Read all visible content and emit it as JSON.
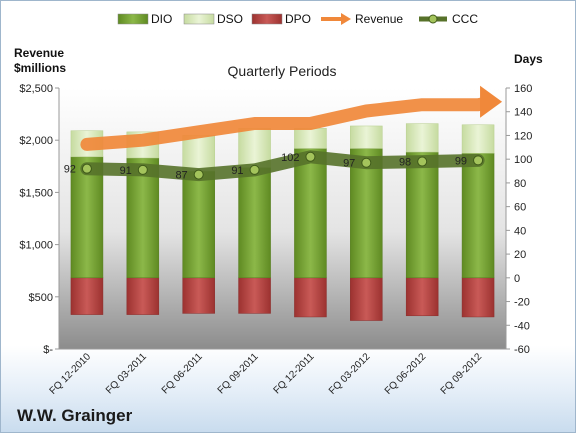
{
  "company_name": "W.W. Grainger",
  "chart_data": {
    "type": "bar",
    "title": "Quarterly Periods",
    "left_axis_label_line1": "Revenue",
    "left_axis_label_line2": "$millions",
    "right_axis_label": "Days",
    "categories": [
      "FQ 12-2010",
      "FQ 03-2011",
      "FQ 06-2011",
      "FQ 09-2011",
      "FQ 12-2011",
      "FQ 03-2012",
      "FQ 06-2012",
      "FQ 09-2012"
    ],
    "left_axis": {
      "min": 0,
      "max": 2500,
      "ticks": [
        0,
        500,
        1000,
        1500,
        2000,
        2500
      ],
      "tick_labels": [
        "$-",
        "$500",
        "$1,000",
        "$1,500",
        "$2,000",
        "$2,500"
      ]
    },
    "right_axis": {
      "min": -60,
      "max": 160,
      "ticks": [
        -60,
        -40,
        -20,
        0,
        20,
        40,
        60,
        80,
        100,
        120,
        140,
        160
      ]
    },
    "series": [
      {
        "name": "DIO",
        "kind": "stacked-bar",
        "axis": "days",
        "color": "#77a031",
        "values": [
          102,
          101,
          90,
          93,
          109,
          109,
          106,
          105
        ]
      },
      {
        "name": "DSO",
        "kind": "stacked-bar",
        "axis": "days",
        "color": "#d8e8b4",
        "values": [
          22,
          22,
          30,
          33,
          17,
          19,
          24,
          24
        ]
      },
      {
        "name": "DPO",
        "kind": "negative-bar",
        "axis": "days",
        "color": "#c0504d",
        "values": [
          -31,
          -31,
          -30,
          -30,
          -33,
          -36,
          -32,
          -33
        ]
      },
      {
        "name": "Revenue",
        "kind": "arrow-line",
        "axis": "revenue",
        "color": "#f0883a",
        "values": [
          1960,
          2000,
          2080,
          2160,
          2160,
          2280,
          2340,
          2340
        ]
      },
      {
        "name": "CCC",
        "kind": "line-markers",
        "axis": "days",
        "color": "#6a8730",
        "values": [
          92,
          91,
          87,
          91,
          102,
          97,
          98,
          99
        ]
      }
    ],
    "legend_position": "top",
    "grid": false
  }
}
